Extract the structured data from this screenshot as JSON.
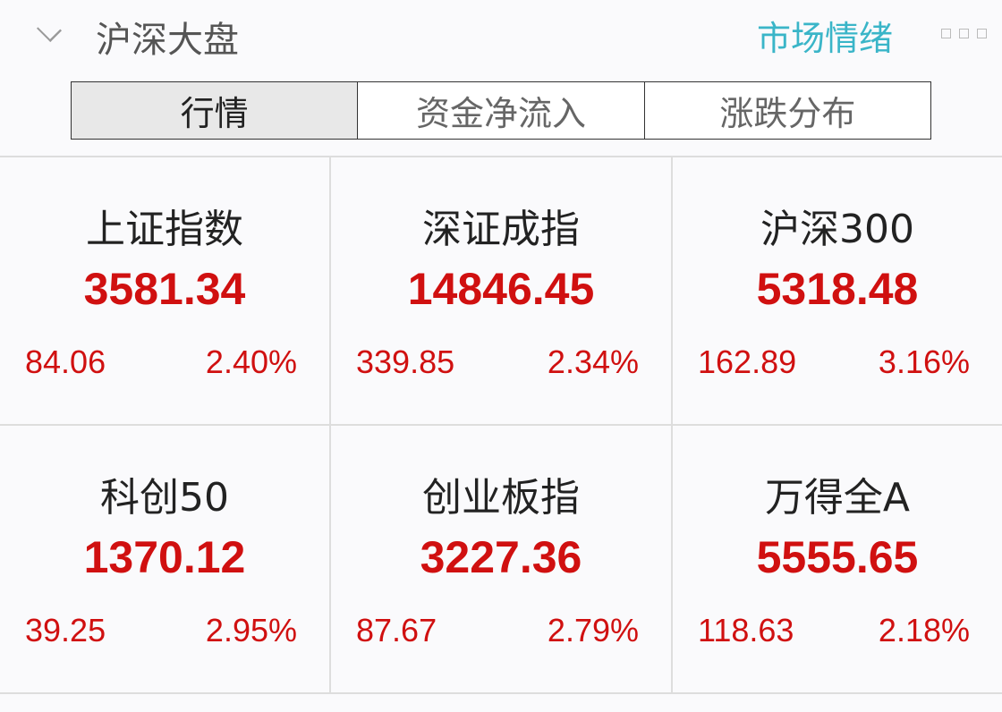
{
  "header": {
    "title": "沪深大盘",
    "mood_link": "市场情绪",
    "collapse_icon": "chevron-down-icon"
  },
  "tabs": [
    {
      "label": "行情",
      "active": true
    },
    {
      "label": "资金净流入",
      "active": false
    },
    {
      "label": "涨跌分布",
      "active": false
    }
  ],
  "indices": [
    {
      "name": "上证指数",
      "value": "3581.34",
      "change": "84.06",
      "percent": "2.40%"
    },
    {
      "name": "深证成指",
      "value": "14846.45",
      "change": "339.85",
      "percent": "2.34%"
    },
    {
      "name": "沪深300",
      "value": "5318.48",
      "change": "162.89",
      "percent": "3.16%"
    },
    {
      "name": "科创50",
      "value": "1370.12",
      "change": "39.25",
      "percent": "2.95%"
    },
    {
      "name": "创业板指",
      "value": "3227.36",
      "change": "87.67",
      "percent": "2.79%"
    },
    {
      "name": "万得全A",
      "value": "5555.65",
      "change": "118.63",
      "percent": "2.18%"
    }
  ],
  "colors": {
    "up": "#d01010",
    "accent": "#3ab5c8"
  }
}
